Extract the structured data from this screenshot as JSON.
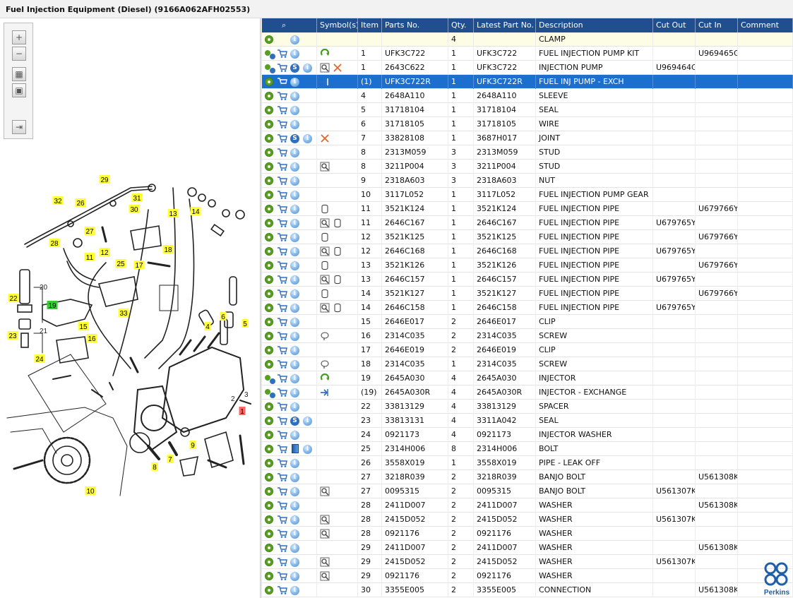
{
  "window": {
    "title": "Fuel Injection Equipment (Diesel) (9166A062AFH02553)"
  },
  "toolbar": {
    "buttons": [
      "zoom-in",
      "zoom-out",
      "fit-all",
      "fit-page",
      "split-view"
    ]
  },
  "diagram": {
    "callouts": [
      {
        "n": "29",
        "color": "yellow"
      },
      {
        "n": "32",
        "color": "yellow"
      },
      {
        "n": "26",
        "color": "yellow"
      },
      {
        "n": "31",
        "color": "yellow"
      },
      {
        "n": "30",
        "color": "yellow"
      },
      {
        "n": "13",
        "color": "yellow"
      },
      {
        "n": "14",
        "color": "yellow"
      },
      {
        "n": "27",
        "color": "yellow"
      },
      {
        "n": "28",
        "color": "yellow"
      },
      {
        "n": "18",
        "color": "yellow"
      },
      {
        "n": "12",
        "color": "yellow"
      },
      {
        "n": "11",
        "color": "yellow"
      },
      {
        "n": "25",
        "color": "yellow"
      },
      {
        "n": "17",
        "color": "yellow"
      },
      {
        "n": "33",
        "color": "yellow"
      },
      {
        "n": "22",
        "color": "yellow"
      },
      {
        "n": "19",
        "color": "green"
      },
      {
        "n": "23",
        "color": "yellow"
      },
      {
        "n": "15",
        "color": "yellow"
      },
      {
        "n": "16",
        "color": "yellow"
      },
      {
        "n": "24",
        "color": "yellow"
      },
      {
        "n": "6",
        "color": "yellow"
      },
      {
        "n": "4",
        "color": "yellow"
      },
      {
        "n": "5",
        "color": "yellow"
      },
      {
        "n": "1",
        "color": "red"
      },
      {
        "n": "9",
        "color": "yellow"
      },
      {
        "n": "7",
        "color": "yellow"
      },
      {
        "n": "8",
        "color": "yellow"
      },
      {
        "n": "10",
        "color": "yellow"
      }
    ],
    "plain_labels": [
      "20",
      "21",
      "2",
      "3"
    ]
  },
  "table": {
    "columns": [
      "",
      "Symbol(s)",
      "Item",
      "Parts No.",
      "Qty.",
      "Latest Part No.",
      "Description",
      "Cut Out",
      "Cut In",
      "Comment"
    ],
    "rows": [
      {
        "icons": [
          "gear",
          "info"
        ],
        "sym": [],
        "item": "",
        "part": "",
        "qty": "4",
        "latest": "",
        "desc": "CLAMP",
        "cutout": "",
        "cutin": "",
        "comment": "",
        "style": "clamp"
      },
      {
        "icons": [
          "gears",
          "cart",
          "info"
        ],
        "sym": [
          "green-arrow"
        ],
        "item": "1",
        "part": "UFK3C722",
        "qty": "1",
        "latest": "UFK3C722",
        "desc": "FUEL INJECTION PUMP KIT",
        "cutout": "",
        "cutin": "U969465G",
        "comment": ""
      },
      {
        "icons": [
          "gears",
          "cart",
          "s",
          "info"
        ],
        "sym": [
          "magnifier",
          "cross"
        ],
        "item": "1",
        "part": "2643C622",
        "qty": "1",
        "latest": "UFK3C722",
        "desc": "INJECTION PUMP",
        "cutout": "U969464G",
        "cutin": "",
        "comment": ""
      },
      {
        "icons": [
          "gear",
          "cart",
          "info"
        ],
        "sym": [
          "exchange"
        ],
        "item": "(1)",
        "part": "UFK3C722R",
        "qty": "1",
        "latest": "UFK3C722R",
        "desc": "FUEL INJ PUMP - EXCH",
        "cutout": "",
        "cutin": "",
        "comment": "",
        "style": "sel"
      },
      {
        "icons": [
          "gear",
          "cart",
          "info"
        ],
        "sym": [],
        "item": "4",
        "part": "2648A110",
        "qty": "1",
        "latest": "2648A110",
        "desc": "SLEEVE",
        "cutout": "",
        "cutin": "",
        "comment": ""
      },
      {
        "icons": [
          "gear",
          "cart",
          "info"
        ],
        "sym": [],
        "item": "5",
        "part": "31718104",
        "qty": "1",
        "latest": "31718104",
        "desc": "SEAL",
        "cutout": "",
        "cutin": "",
        "comment": ""
      },
      {
        "icons": [
          "gear",
          "cart",
          "info"
        ],
        "sym": [],
        "item": "6",
        "part": "31718105",
        "qty": "1",
        "latest": "31718105",
        "desc": "WIRE",
        "cutout": "",
        "cutin": "",
        "comment": ""
      },
      {
        "icons": [
          "gear",
          "cart",
          "s",
          "info"
        ],
        "sym": [
          "cross"
        ],
        "item": "7",
        "part": "33828108",
        "qty": "1",
        "latest": "3687H017",
        "desc": "JOINT",
        "cutout": "",
        "cutin": "",
        "comment": ""
      },
      {
        "icons": [
          "gear",
          "cart",
          "info"
        ],
        "sym": [],
        "item": "8",
        "part": "2313M059",
        "qty": "3",
        "latest": "2313M059",
        "desc": "STUD",
        "cutout": "",
        "cutin": "",
        "comment": ""
      },
      {
        "icons": [
          "gear",
          "cart",
          "info"
        ],
        "sym": [
          "magnifier"
        ],
        "item": "8",
        "part": "3211P004",
        "qty": "3",
        "latest": "3211P004",
        "desc": "STUD",
        "cutout": "",
        "cutin": "",
        "comment": ""
      },
      {
        "icons": [
          "gear",
          "cart",
          "info"
        ],
        "sym": [],
        "item": "9",
        "part": "2318A603",
        "qty": "3",
        "latest": "2318A603",
        "desc": "NUT",
        "cutout": "",
        "cutin": "",
        "comment": ""
      },
      {
        "icons": [
          "gear",
          "cart",
          "info"
        ],
        "sym": [],
        "item": "10",
        "part": "3117L052",
        "qty": "1",
        "latest": "3117L052",
        "desc": "FUEL INJECTION PUMP GEAR",
        "cutout": "",
        "cutin": "",
        "comment": ""
      },
      {
        "icons": [
          "gear",
          "cart",
          "info"
        ],
        "sym": [
          "can"
        ],
        "item": "11",
        "part": "3521K124",
        "qty": "1",
        "latest": "3521K124",
        "desc": "FUEL INJECTION PIPE",
        "cutout": "",
        "cutin": "U679766Y",
        "comment": ""
      },
      {
        "icons": [
          "gear",
          "cart",
          "info"
        ],
        "sym": [
          "magnifier",
          "can"
        ],
        "item": "11",
        "part": "2646C167",
        "qty": "1",
        "latest": "2646C167",
        "desc": "FUEL INJECTION PIPE",
        "cutout": "U679765Y",
        "cutin": "",
        "comment": ""
      },
      {
        "icons": [
          "gear",
          "cart",
          "info"
        ],
        "sym": [
          "can"
        ],
        "item": "12",
        "part": "3521K125",
        "qty": "1",
        "latest": "3521K125",
        "desc": "FUEL INJECTION PIPE",
        "cutout": "",
        "cutin": "U679766Y",
        "comment": ""
      },
      {
        "icons": [
          "gear",
          "cart",
          "info"
        ],
        "sym": [
          "magnifier",
          "can"
        ],
        "item": "12",
        "part": "2646C168",
        "qty": "1",
        "latest": "2646C168",
        "desc": "FUEL INJECTION PIPE",
        "cutout": "U679765Y",
        "cutin": "",
        "comment": ""
      },
      {
        "icons": [
          "gear",
          "cart",
          "info"
        ],
        "sym": [
          "can"
        ],
        "item": "13",
        "part": "3521K126",
        "qty": "1",
        "latest": "3521K126",
        "desc": "FUEL INJECTION PIPE",
        "cutout": "",
        "cutin": "U679766Y",
        "comment": ""
      },
      {
        "icons": [
          "gear",
          "cart",
          "info"
        ],
        "sym": [
          "magnifier",
          "can"
        ],
        "item": "13",
        "part": "2646C157",
        "qty": "1",
        "latest": "2646C157",
        "desc": "FUEL INJECTION PIPE",
        "cutout": "U679765Y",
        "cutin": "",
        "comment": ""
      },
      {
        "icons": [
          "gear",
          "cart",
          "info"
        ],
        "sym": [
          "can"
        ],
        "item": "14",
        "part": "3521K127",
        "qty": "1",
        "latest": "3521K127",
        "desc": "FUEL INJECTION PIPE",
        "cutout": "",
        "cutin": "U679766Y",
        "comment": ""
      },
      {
        "icons": [
          "gear",
          "cart",
          "info"
        ],
        "sym": [
          "magnifier",
          "can"
        ],
        "item": "14",
        "part": "2646C158",
        "qty": "1",
        "latest": "2646C158",
        "desc": "FUEL INJECTION PIPE",
        "cutout": "U679765Y",
        "cutin": "",
        "comment": ""
      },
      {
        "icons": [
          "gear",
          "cart",
          "info"
        ],
        "sym": [],
        "item": "15",
        "part": "2646E017",
        "qty": "2",
        "latest": "2646E017",
        "desc": "CLIP",
        "cutout": "",
        "cutin": "",
        "comment": ""
      },
      {
        "icons": [
          "gear",
          "cart",
          "info"
        ],
        "sym": [
          "comment"
        ],
        "item": "16",
        "part": "2314C035",
        "qty": "2",
        "latest": "2314C035",
        "desc": "SCREW",
        "cutout": "",
        "cutin": "",
        "comment": ""
      },
      {
        "icons": [
          "gear",
          "cart",
          "info"
        ],
        "sym": [],
        "item": "17",
        "part": "2646E019",
        "qty": "2",
        "latest": "2646E019",
        "desc": "CLIP",
        "cutout": "",
        "cutin": "",
        "comment": ""
      },
      {
        "icons": [
          "gear",
          "cart",
          "info"
        ],
        "sym": [
          "comment"
        ],
        "item": "18",
        "part": "2314C035",
        "qty": "1",
        "latest": "2314C035",
        "desc": "SCREW",
        "cutout": "",
        "cutin": "",
        "comment": ""
      },
      {
        "icons": [
          "gears",
          "cart",
          "info"
        ],
        "sym": [
          "green-arrow"
        ],
        "item": "19",
        "part": "2645A030",
        "qty": "4",
        "latest": "2645A030",
        "desc": "INJECTOR",
        "cutout": "",
        "cutin": "",
        "comment": ""
      },
      {
        "icons": [
          "gears",
          "cart",
          "info"
        ],
        "sym": [
          "exchange"
        ],
        "item": "(19)",
        "part": "2645A030R",
        "qty": "4",
        "latest": "2645A030R",
        "desc": "INJECTOR - EXCHANGE",
        "cutout": "",
        "cutin": "",
        "comment": ""
      },
      {
        "icons": [
          "gear",
          "cart",
          "info"
        ],
        "sym": [],
        "item": "22",
        "part": "33813129",
        "qty": "4",
        "latest": "33813129",
        "desc": "SPACER",
        "cutout": "",
        "cutin": "",
        "comment": ""
      },
      {
        "icons": [
          "gear",
          "cart",
          "s",
          "info"
        ],
        "sym": [],
        "item": "23",
        "part": "33813131",
        "qty": "4",
        "latest": "3311A042",
        "desc": "SEAL",
        "cutout": "",
        "cutin": "",
        "comment": ""
      },
      {
        "icons": [
          "gear",
          "cart",
          "info"
        ],
        "sym": [],
        "item": "24",
        "part": "0921173",
        "qty": "4",
        "latest": "0921173",
        "desc": "INJECTOR WASHER",
        "cutout": "",
        "cutin": "",
        "comment": ""
      },
      {
        "icons": [
          "gear",
          "cart",
          "book",
          "info"
        ],
        "sym": [],
        "item": "25",
        "part": "2314H006",
        "qty": "8",
        "latest": "2314H006",
        "desc": "BOLT",
        "cutout": "",
        "cutin": "",
        "comment": ""
      },
      {
        "icons": [
          "gear",
          "cart",
          "info"
        ],
        "sym": [],
        "item": "26",
        "part": "3558X019",
        "qty": "1",
        "latest": "3558X019",
        "desc": "PIPE - LEAK OFF",
        "cutout": "",
        "cutin": "",
        "comment": ""
      },
      {
        "icons": [
          "gear",
          "cart",
          "info"
        ],
        "sym": [],
        "item": "27",
        "part": "3218R039",
        "qty": "2",
        "latest": "3218R039",
        "desc": "BANJO BOLT",
        "cutout": "",
        "cutin": "U561308K",
        "comment": ""
      },
      {
        "icons": [
          "gear",
          "cart",
          "info"
        ],
        "sym": [
          "magnifier"
        ],
        "item": "27",
        "part": "0095315",
        "qty": "2",
        "latest": "0095315",
        "desc": "BANJO BOLT",
        "cutout": "U561307K",
        "cutin": "",
        "comment": ""
      },
      {
        "icons": [
          "gear",
          "cart",
          "info"
        ],
        "sym": [],
        "item": "28",
        "part": "2411D007",
        "qty": "2",
        "latest": "2411D007",
        "desc": "WASHER",
        "cutout": "",
        "cutin": "U561308K",
        "comment": ""
      },
      {
        "icons": [
          "gear",
          "cart",
          "info"
        ],
        "sym": [
          "magnifier"
        ],
        "item": "28",
        "part": "2415D052",
        "qty": "2",
        "latest": "2415D052",
        "desc": "WASHER",
        "cutout": "U561307K",
        "cutin": "",
        "comment": ""
      },
      {
        "icons": [
          "gear",
          "cart",
          "info"
        ],
        "sym": [
          "magnifier"
        ],
        "item": "28",
        "part": "0921176",
        "qty": "2",
        "latest": "0921176",
        "desc": "WASHER",
        "cutout": "",
        "cutin": "",
        "comment": ""
      },
      {
        "icons": [
          "gear",
          "cart",
          "info"
        ],
        "sym": [],
        "item": "29",
        "part": "2411D007",
        "qty": "2",
        "latest": "2411D007",
        "desc": "WASHER",
        "cutout": "",
        "cutin": "U561308K",
        "comment": ""
      },
      {
        "icons": [
          "gear",
          "cart",
          "info"
        ],
        "sym": [
          "magnifier"
        ],
        "item": "29",
        "part": "2415D052",
        "qty": "2",
        "latest": "2415D052",
        "desc": "WASHER",
        "cutout": "U561307K",
        "cutin": "",
        "comment": ""
      },
      {
        "icons": [
          "gear",
          "cart",
          "info"
        ],
        "sym": [
          "magnifier"
        ],
        "item": "29",
        "part": "0921176",
        "qty": "2",
        "latest": "0921176",
        "desc": "WASHER",
        "cutout": "",
        "cutin": "",
        "comment": ""
      },
      {
        "icons": [
          "gear",
          "cart",
          "info"
        ],
        "sym": [],
        "item": "30",
        "part": "3355E005",
        "qty": "2",
        "latest": "3355E005",
        "desc": "CONNECTION",
        "cutout": "",
        "cutin": "U561308K",
        "comment": ""
      }
    ]
  },
  "logo": {
    "text": "Perkins",
    "color": "#1f5fa8"
  },
  "colors": {
    "header": "#1f4f8f",
    "selected_row": "#1c6fcf",
    "callout_yellow": "#ffff33",
    "callout_green": "#33cc33",
    "callout_red": "#ff6666"
  }
}
